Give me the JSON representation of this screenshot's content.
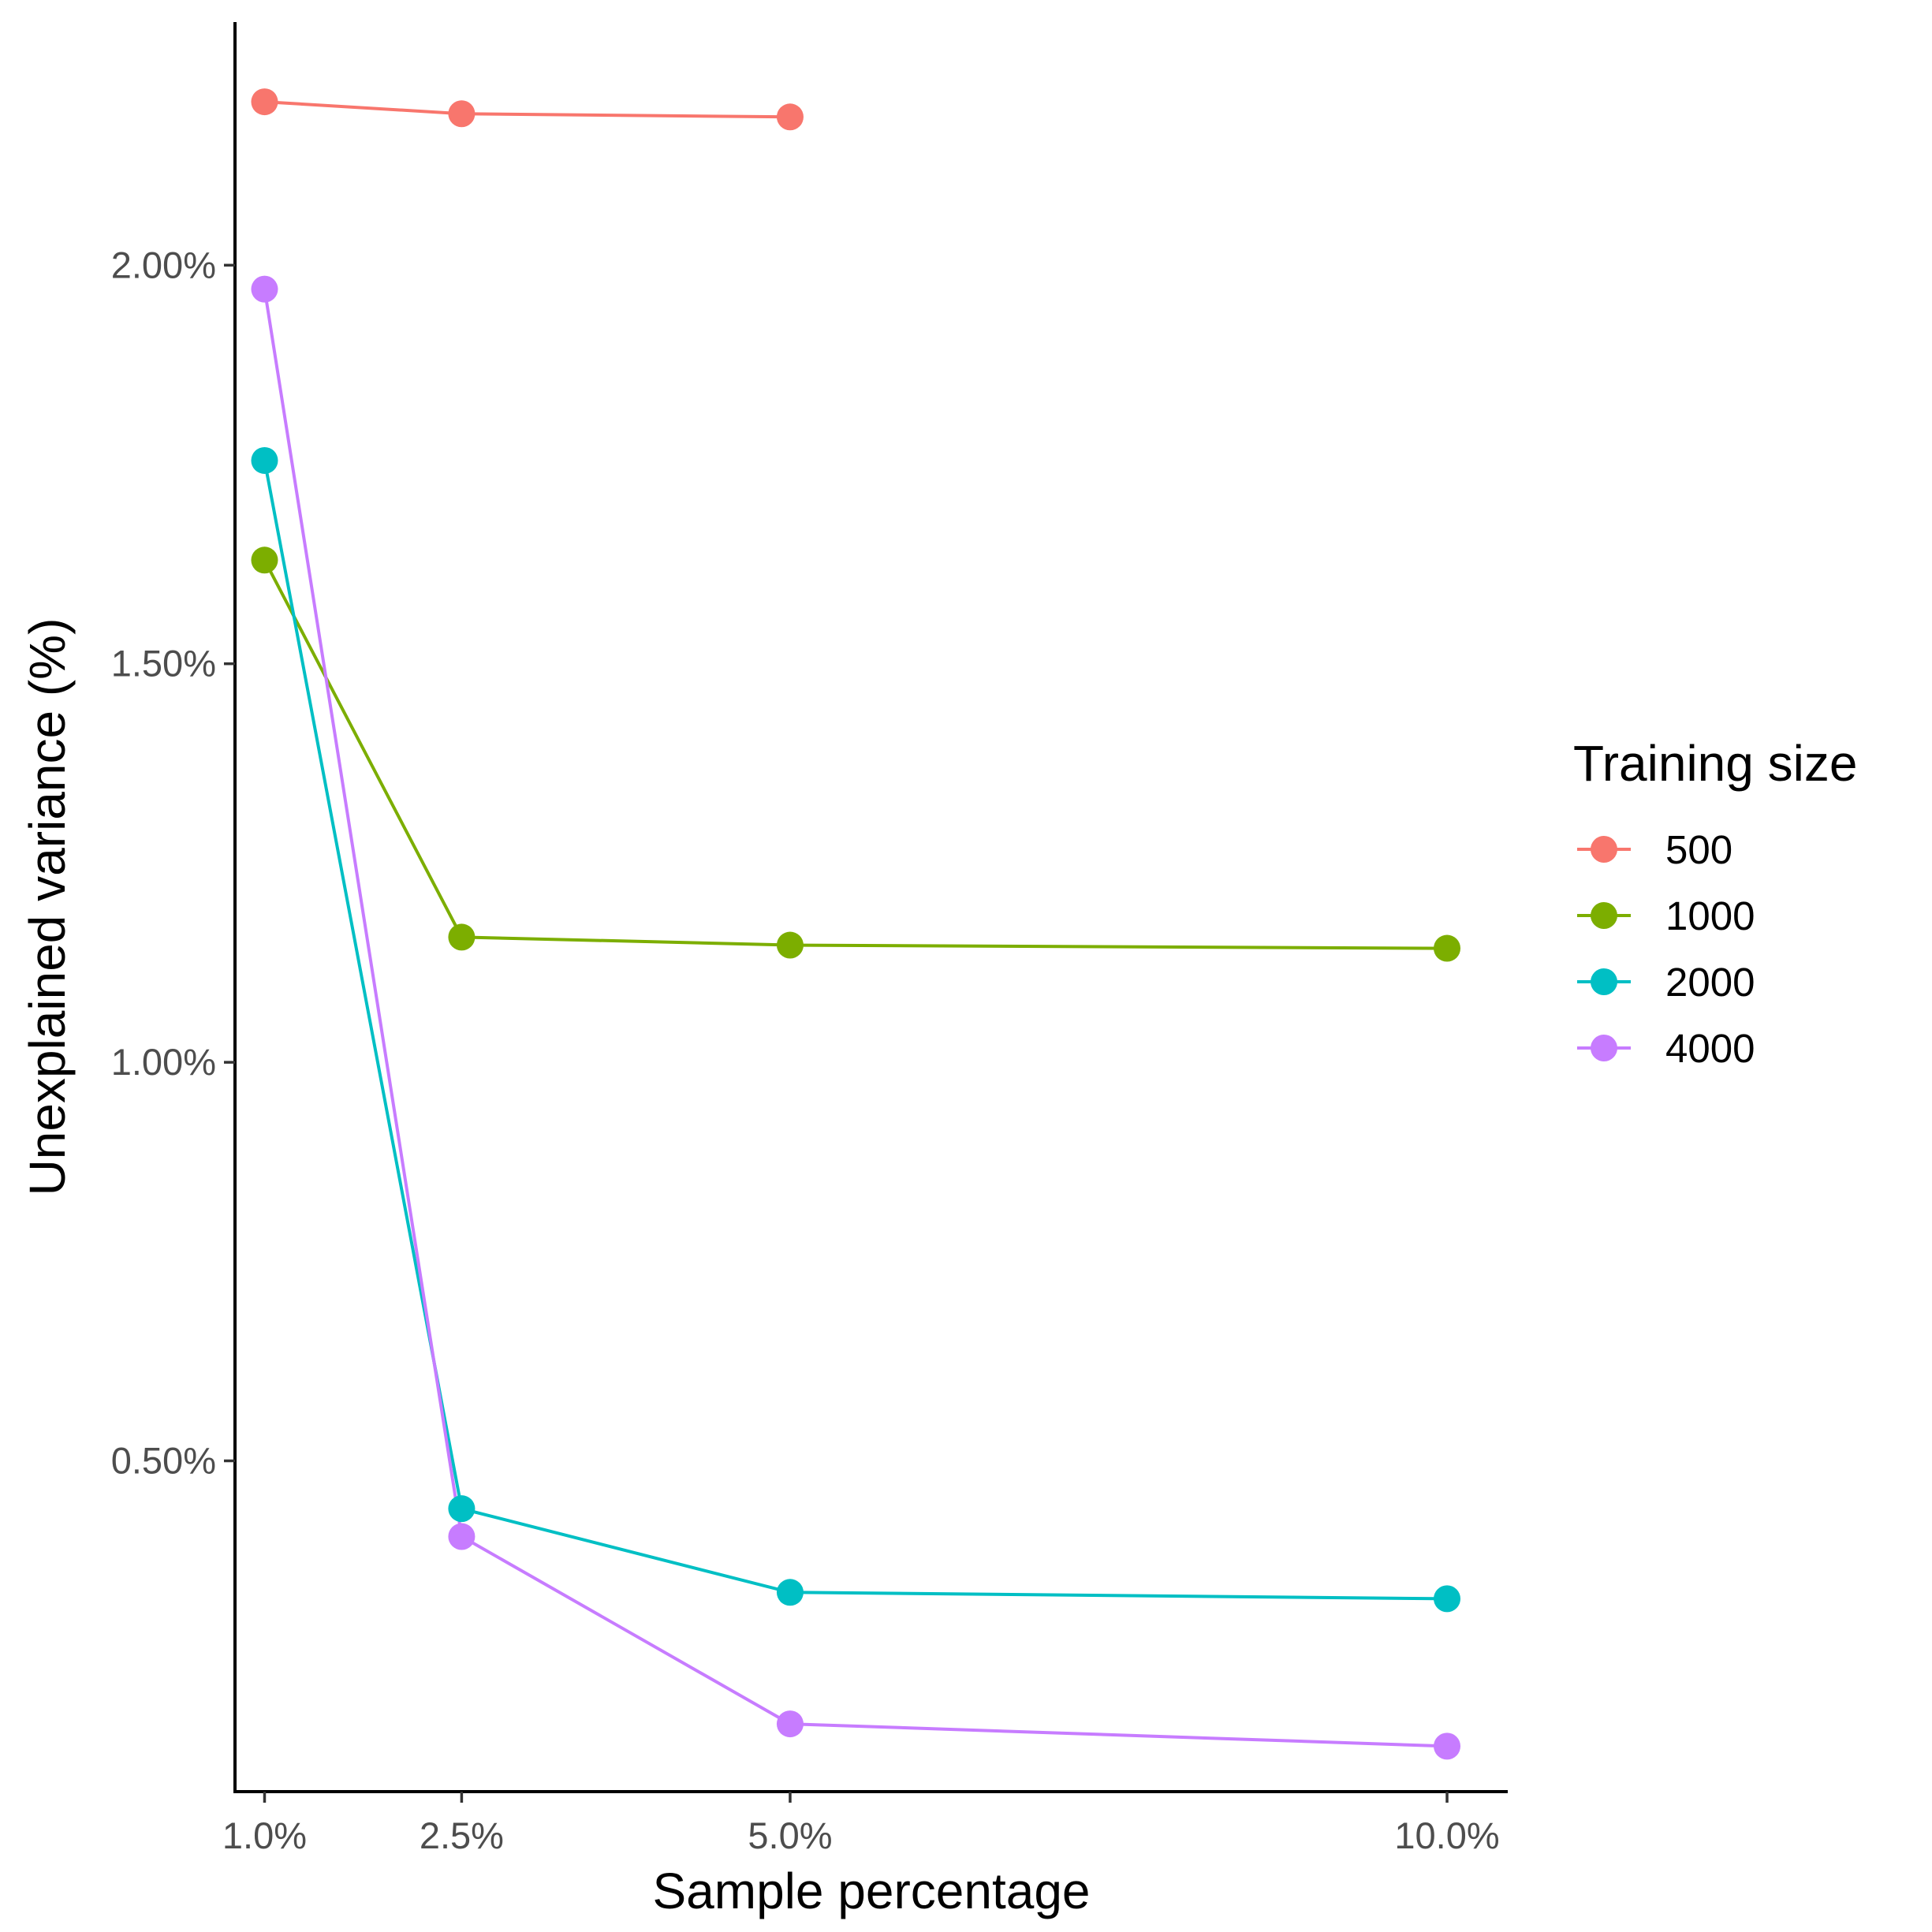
{
  "chart_data": {
    "type": "line",
    "xlabel": "Sample percentage",
    "ylabel": "Unexplained variance (%)",
    "x_ticks": [
      {
        "value": 1.0,
        "label": "1.0%"
      },
      {
        "value": 2.5,
        "label": "2.5%"
      },
      {
        "value": 5.0,
        "label": "5.0%"
      },
      {
        "value": 10.0,
        "label": "10.0%"
      }
    ],
    "y_ticks": [
      {
        "value": 0.5,
        "label": "0.50%"
      },
      {
        "value": 1.0,
        "label": "1.00%"
      },
      {
        "value": 1.5,
        "label": "1.50%"
      },
      {
        "value": 2.0,
        "label": "2.00%"
      }
    ],
    "xlim": [
      0.775,
      10.45
    ],
    "ylim": [
      0.085,
      2.305
    ],
    "grid": false,
    "legend": {
      "title": "Training size",
      "position": "right"
    },
    "series": [
      {
        "name": "500",
        "color": "#F8766D",
        "points": [
          {
            "x": 1.0,
            "y": 2.205
          },
          {
            "x": 2.5,
            "y": 2.19
          },
          {
            "x": 5.0,
            "y": 2.186
          }
        ]
      },
      {
        "name": "1000",
        "color": "#7CAE00",
        "points": [
          {
            "x": 1.0,
            "y": 1.63
          },
          {
            "x": 2.5,
            "y": 1.157
          },
          {
            "x": 5.0,
            "y": 1.147
          },
          {
            "x": 10.0,
            "y": 1.143
          }
        ]
      },
      {
        "name": "2000",
        "color": "#00BFC4",
        "points": [
          {
            "x": 1.0,
            "y": 1.755
          },
          {
            "x": 2.5,
            "y": 0.44
          },
          {
            "x": 5.0,
            "y": 0.335
          },
          {
            "x": 10.0,
            "y": 0.327
          }
        ]
      },
      {
        "name": "4000",
        "color": "#C77CFF",
        "points": [
          {
            "x": 1.0,
            "y": 1.97
          },
          {
            "x": 2.5,
            "y": 0.405
          },
          {
            "x": 5.0,
            "y": 0.17
          },
          {
            "x": 10.0,
            "y": 0.142
          }
        ]
      }
    ]
  }
}
